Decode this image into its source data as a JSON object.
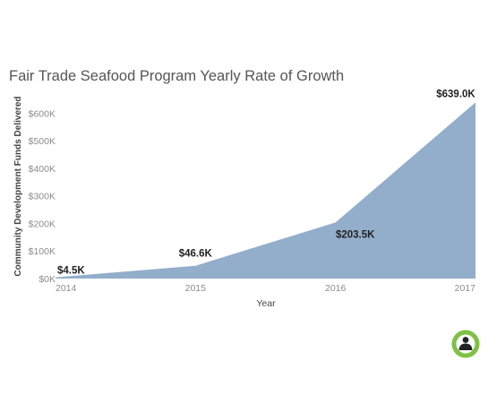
{
  "chart_data": {
    "type": "area",
    "title": "Fair Trade Seafood Program Yearly Rate of Growth",
    "xlabel": "Year",
    "ylabel": "Community Development Funds Delivered",
    "categories": [
      "2014",
      "2015",
      "2016",
      "2017"
    ],
    "values": [
      4500,
      46600,
      203500,
      639000
    ],
    "data_labels": [
      "$4.5K",
      "$46.6K",
      "$203.5K",
      "$639.0K"
    ],
    "ylim": [
      0,
      650000
    ],
    "yticks": [
      0,
      100000,
      200000,
      300000,
      400000,
      500000,
      600000
    ],
    "ytick_labels": [
      "$0K",
      "$100K",
      "$200K",
      "$300K",
      "$400K",
      "$500K",
      "$600K"
    ],
    "grid": false,
    "legend": false
  },
  "colors": {
    "area": "#93aecb",
    "tick_text": "#8c8c8c",
    "label_text": "#222222",
    "logo_green": "#7ec242"
  },
  "logo": {
    "icon": "fisherman-badge-icon"
  }
}
